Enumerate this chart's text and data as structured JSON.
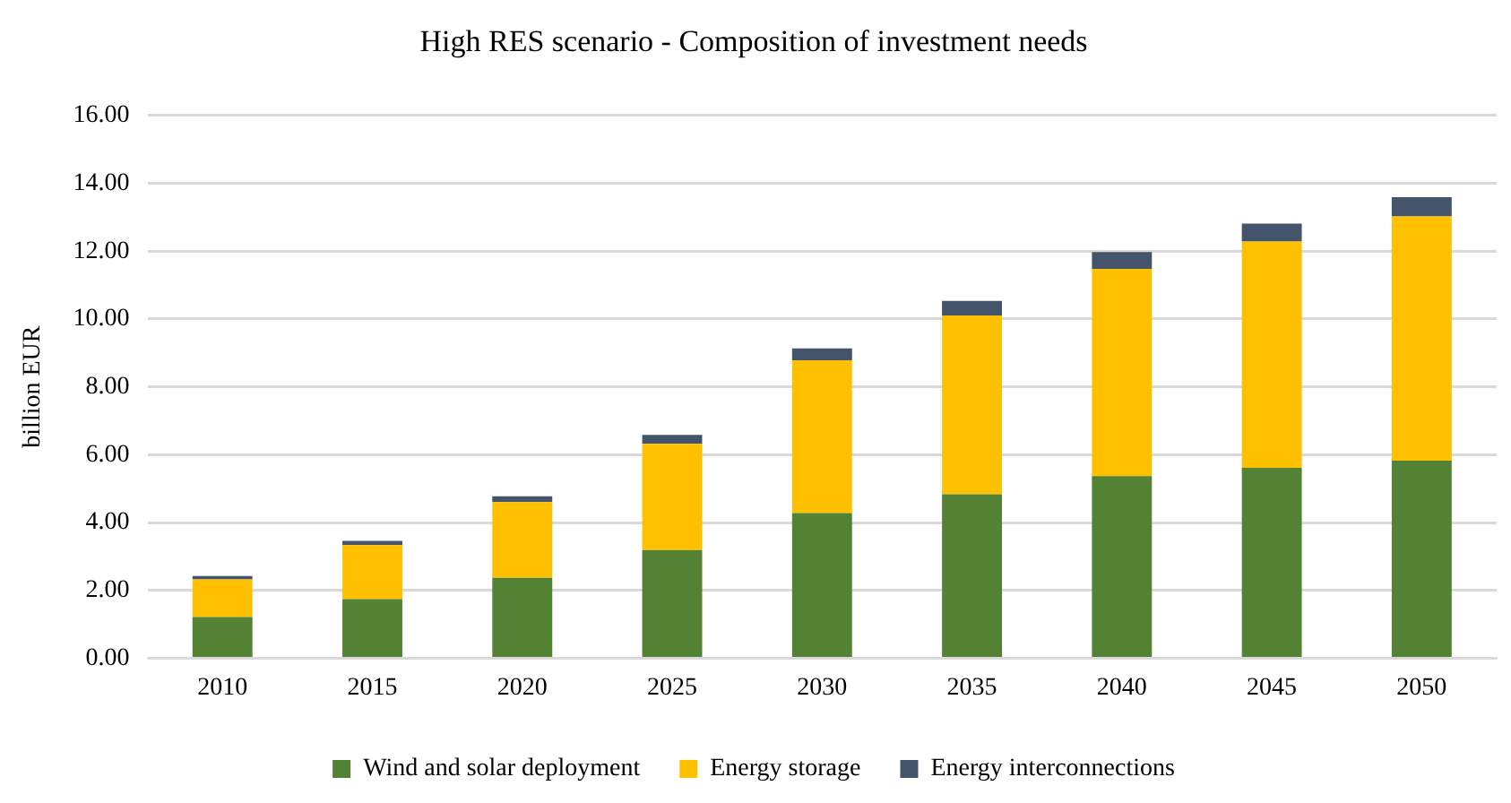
{
  "chart_data": {
    "type": "bar",
    "title": "High RES scenario - Composition of investment needs",
    "ylabel": "billion EUR",
    "categories": [
      "2010",
      "2015",
      "2020",
      "2025",
      "2030",
      "2035",
      "2040",
      "2045",
      "2050"
    ],
    "series": [
      {
        "name": "Wind and solar deployment",
        "color": "#548235",
        "values": [
          1.21,
          1.74,
          2.37,
          3.19,
          4.28,
          4.83,
          5.37,
          5.61,
          5.82
        ]
      },
      {
        "name": "Energy storage",
        "color": "#ffc000",
        "values": [
          1.11,
          1.59,
          2.23,
          3.13,
          4.5,
          5.27,
          6.11,
          6.67,
          7.2
        ]
      },
      {
        "name": "Energy interconnections",
        "color": "#44546a",
        "values": [
          0.1,
          0.13,
          0.17,
          0.26,
          0.35,
          0.43,
          0.49,
          0.53,
          0.57
        ]
      }
    ],
    "stacked": true,
    "ylim": [
      0,
      16
    ],
    "yticks": [
      {
        "value": 0,
        "label": "0.00"
      },
      {
        "value": 2,
        "label": "2.00"
      },
      {
        "value": 4,
        "label": "4.00"
      },
      {
        "value": 6,
        "label": "6.00"
      },
      {
        "value": 8,
        "label": "8.00"
      },
      {
        "value": 10,
        "label": "10.00"
      },
      {
        "value": 12,
        "label": "12.00"
      },
      {
        "value": 14,
        "label": "14.00"
      },
      {
        "value": 16,
        "label": "16.00"
      }
    ],
    "grid": "y",
    "legend": "bottom"
  }
}
